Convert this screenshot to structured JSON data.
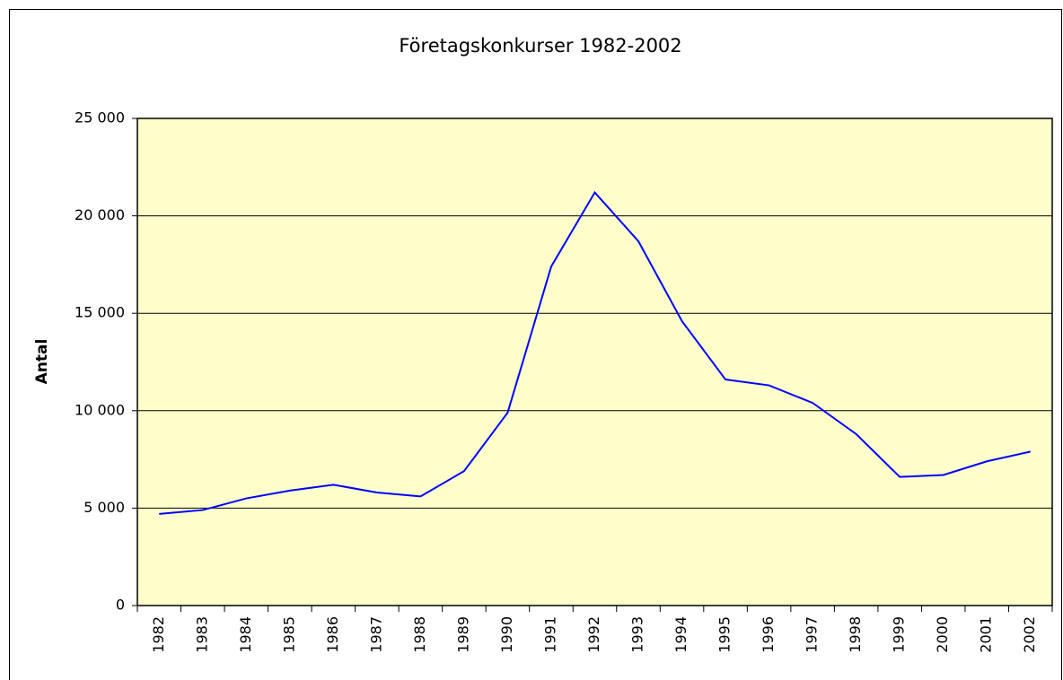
{
  "chart_data": {
    "type": "line",
    "title": "Företagskonkurser 1982-2002",
    "y_label": "Antal",
    "categories": [
      "1982",
      "1983",
      "1984",
      "1985",
      "1986",
      "1987",
      "1988",
      "1989",
      "1990",
      "1991",
      "1992",
      "1993",
      "1994",
      "1995",
      "1996",
      "1997",
      "1998",
      "1999",
      "2000",
      "2001",
      "2002"
    ],
    "series": [
      {
        "name": "Antal",
        "color": "#0000ff",
        "values": [
          4700,
          4900,
          5500,
          5900,
          6200,
          5800,
          5600,
          6900,
          9900,
          17400,
          21200,
          18700,
          14600,
          11600,
          11300,
          10400,
          8800,
          6600,
          6700,
          7400,
          7900
        ]
      }
    ],
    "ylim": [
      0,
      25000
    ],
    "yticks": [
      0,
      {
        "value": 5000,
        "label": "5 000"
      },
      {
        "value": 10000,
        "label": "10 000"
      },
      {
        "value": 15000,
        "label": "15 000"
      },
      {
        "value": 20000,
        "label": "20 000"
      },
      {
        "value": 25000,
        "label": "25 000"
      }
    ],
    "grid": true,
    "plot_background": "#ffffcc"
  }
}
